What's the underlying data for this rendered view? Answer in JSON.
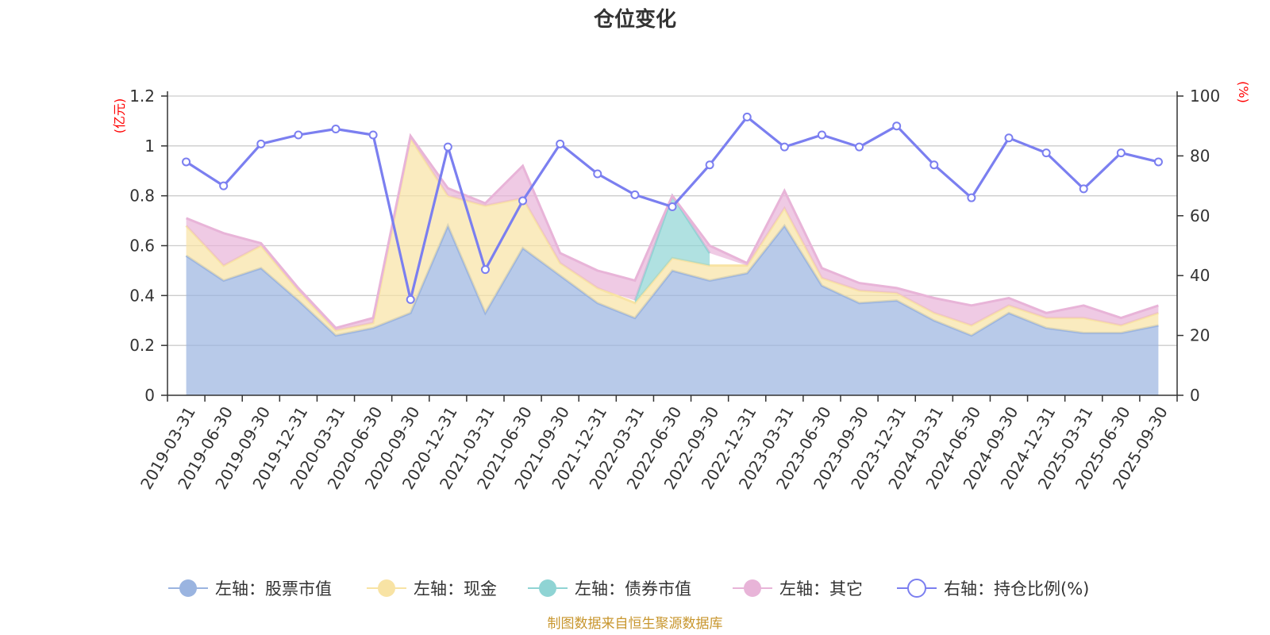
{
  "chart_data": {
    "type": "area",
    "title": "仓位变化",
    "left_axis_label": "(亿元)",
    "right_axis_label": "(%)",
    "ylim_left": [
      0,
      1.2
    ],
    "ylim_right": [
      0,
      100
    ],
    "left_ticks": [
      "0",
      "0.2",
      "0.4",
      "0.6",
      "0.8",
      "1",
      "1.2"
    ],
    "right_ticks": [
      "0",
      "20",
      "40",
      "60",
      "80",
      "100"
    ],
    "categories": [
      "2019-03-31",
      "2019-06-30",
      "2019-09-30",
      "2019-12-31",
      "2020-03-31",
      "2020-06-30",
      "2020-09-30",
      "2020-12-31",
      "2021-03-31",
      "2021-06-30",
      "2021-09-30",
      "2021-12-31",
      "2022-03-31",
      "2022-06-30",
      "2022-09-30",
      "2022-12-31",
      "2023-03-31",
      "2023-06-30",
      "2023-09-30",
      "2023-12-31",
      "2024-03-31",
      "2024-06-30",
      "2024-09-30",
      "2024-12-31",
      "2025-03-31",
      "2025-06-30",
      "2025-09-30"
    ],
    "series": [
      {
        "name": "左轴：股票市值",
        "axis": "left",
        "type": "stacked-area",
        "color": "#9ab4e0",
        "values": [
          0.56,
          0.46,
          0.51,
          0.38,
          0.24,
          0.27,
          0.33,
          0.68,
          0.33,
          0.59,
          0.48,
          0.37,
          0.31,
          0.5,
          0.46,
          0.49,
          0.68,
          0.44,
          0.37,
          0.38,
          0.3,
          0.24,
          0.33,
          0.27,
          0.25,
          0.25,
          0.28
        ]
      },
      {
        "name": "左轴：现金",
        "axis": "left",
        "type": "stacked-area",
        "color": "#f8e3a4",
        "values": [
          0.12,
          0.06,
          0.09,
          0.04,
          0.02,
          0.02,
          0.7,
          0.12,
          0.43,
          0.2,
          0.05,
          0.06,
          0.06,
          0.05,
          0.06,
          0.03,
          0.07,
          0.03,
          0.05,
          0.03,
          0.03,
          0.04,
          0.03,
          0.04,
          0.06,
          0.03,
          0.05
        ]
      },
      {
        "name": "左轴：债券市值",
        "axis": "left",
        "type": "stacked-area",
        "color": "#8fd4d4",
        "values": [
          0,
          0,
          0,
          0,
          0,
          0,
          0,
          0,
          0,
          0,
          0,
          0,
          0.01,
          0.25,
          0.05,
          0,
          0,
          0,
          0,
          0,
          0,
          0,
          0,
          0,
          0,
          0,
          0
        ]
      },
      {
        "name": "左轴：其它",
        "axis": "left",
        "type": "stacked-area",
        "color": "#e8b4d8",
        "values": [
          0.03,
          0.13,
          0.01,
          0.01,
          0.01,
          0.02,
          0.01,
          0.03,
          0.01,
          0.13,
          0.04,
          0.07,
          0.08,
          0,
          0.03,
          0.01,
          0.07,
          0.04,
          0.03,
          0.02,
          0.06,
          0.08,
          0.03,
          0.02,
          0.05,
          0.03,
          0.03
        ]
      },
      {
        "name": "右轴：持仓比例(%)",
        "axis": "right",
        "type": "line",
        "color": "#7b7ff0",
        "values": [
          78,
          70,
          84,
          87,
          89,
          87,
          32,
          83,
          42,
          65,
          84,
          74,
          67,
          63,
          77,
          93,
          83,
          87,
          83,
          90,
          77,
          66,
          86,
          81,
          69,
          81,
          78
        ]
      }
    ]
  },
  "source_note": "制图数据来自恒生聚源数据库"
}
